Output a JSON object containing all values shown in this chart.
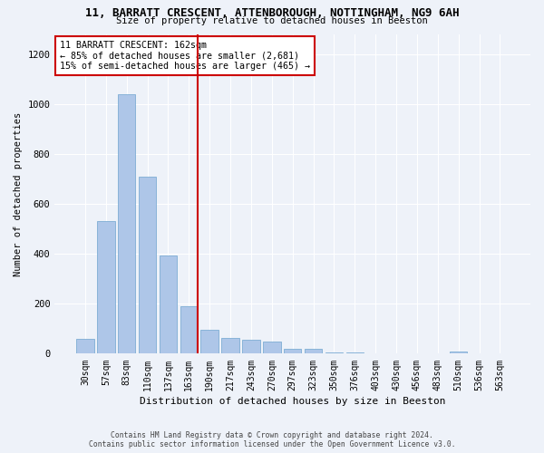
{
  "title1": "11, BARRATT CRESCENT, ATTENBOROUGH, NOTTINGHAM, NG9 6AH",
  "title2": "Size of property relative to detached houses in Beeston",
  "xlabel": "Distribution of detached houses by size in Beeston",
  "ylabel": "Number of detached properties",
  "categories": [
    "30sqm",
    "57sqm",
    "83sqm",
    "110sqm",
    "137sqm",
    "163sqm",
    "190sqm",
    "217sqm",
    "243sqm",
    "270sqm",
    "297sqm",
    "323sqm",
    "350sqm",
    "376sqm",
    "403sqm",
    "430sqm",
    "456sqm",
    "483sqm",
    "510sqm",
    "536sqm",
    "563sqm"
  ],
  "values": [
    60,
    530,
    1040,
    710,
    395,
    190,
    95,
    65,
    55,
    50,
    20,
    20,
    5,
    5,
    2,
    2,
    1,
    1,
    10,
    1,
    1
  ],
  "bar_color": "#aec6e8",
  "bar_edge_color": "#7dadd4",
  "annotation_line0": "11 BARRATT CRESCENT: 162sqm",
  "annotation_line1": "← 85% of detached houses are smaller (2,681)",
  "annotation_line2": "15% of semi-detached houses are larger (465) →",
  "annotation_box_color": "#ffffff",
  "annotation_box_edge": "#cc0000",
  "line_color": "#cc0000",
  "ylim": [
    0,
    1280
  ],
  "yticks": [
    0,
    200,
    400,
    600,
    800,
    1000,
    1200
  ],
  "footer1": "Contains HM Land Registry data © Crown copyright and database right 2024.",
  "footer2": "Contains public sector information licensed under the Open Government Licence v3.0.",
  "background_color": "#eef2f9"
}
